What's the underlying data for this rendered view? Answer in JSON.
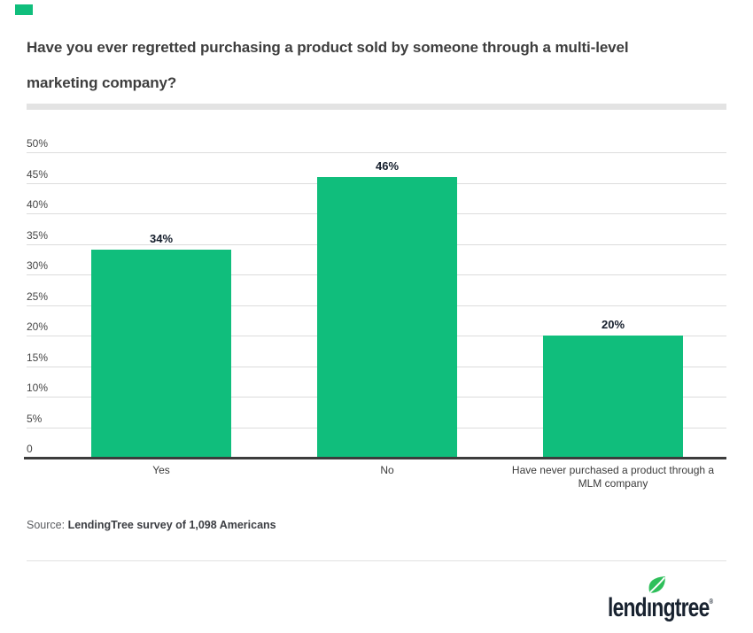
{
  "brand": {
    "accent_color": "#10be7c",
    "logo_text": "lendıngtree",
    "logo_registered": "®",
    "logo_color": "#18222f",
    "leaf_color": "#2ebf5a"
  },
  "title": {
    "line1": "Have you ever regretted purchasing a product sold by someone through a multi-level",
    "line2": "marketing company?"
  },
  "source": {
    "prefix": "Source: ",
    "text": "LendingTree survey of 1,098 Americans"
  },
  "chart_data": {
    "type": "bar",
    "title": "Have you ever regretted purchasing a product sold by someone through a multi-level marketing company?",
    "categories": [
      "Yes",
      "No",
      "Have never purchased a product through a MLM company"
    ],
    "values": [
      34,
      46,
      20
    ],
    "value_labels": [
      "34%",
      "46%",
      "20%"
    ],
    "xlabel": "",
    "ylabel": "",
    "ylim": [
      0,
      50
    ],
    "yticks": [
      {
        "value": 50,
        "label": "50%"
      },
      {
        "value": 45,
        "label": "45%"
      },
      {
        "value": 40,
        "label": "40%"
      },
      {
        "value": 35,
        "label": "35%"
      },
      {
        "value": 30,
        "label": "30%"
      },
      {
        "value": 25,
        "label": "25%"
      },
      {
        "value": 20,
        "label": "20%"
      },
      {
        "value": 15,
        "label": "15%"
      },
      {
        "value": 10,
        "label": "10%"
      },
      {
        "value": 5,
        "label": "5%"
      },
      {
        "value": 0,
        "label": "0"
      }
    ],
    "grid": true,
    "legend": false,
    "bar_color": "#10be7c"
  }
}
